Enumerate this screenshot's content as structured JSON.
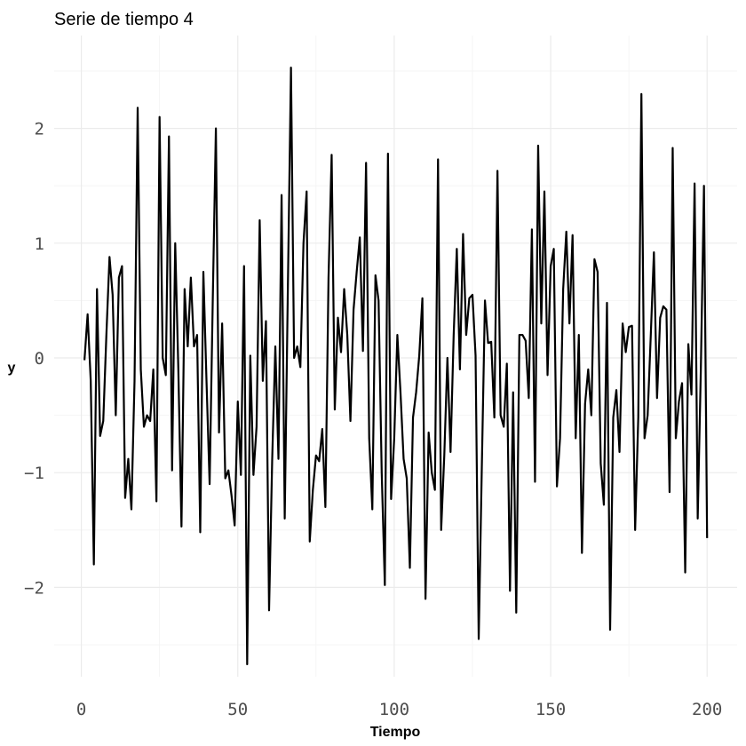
{
  "chart_data": {
    "type": "line",
    "title": "Serie de tiempo 4",
    "xlabel": "Tiempo",
    "ylabel": "y",
    "xlim": [
      0,
      200
    ],
    "ylim": [
      -2.7,
      2.55
    ],
    "x_ticks": [
      0,
      50,
      100,
      150,
      200
    ],
    "x_tick_labels": [
      "0",
      "50",
      "100",
      "150",
      "200"
    ],
    "y_ticks": [
      -2,
      -1,
      0,
      1,
      2
    ],
    "y_tick_labels": [
      "−2",
      "−1",
      "0",
      "1",
      "2"
    ],
    "grid": true,
    "line_color": "#000000",
    "series": [
      {
        "x": [
          1,
          2,
          3,
          4,
          5,
          6,
          7,
          8,
          9,
          10,
          11,
          12,
          13,
          14,
          15,
          16,
          17,
          18,
          19,
          20,
          21,
          22,
          23,
          24,
          25,
          26,
          27,
          28,
          29,
          30,
          31,
          32,
          33,
          34,
          35,
          36,
          37,
          38,
          39,
          40,
          41,
          42,
          43,
          44,
          45,
          46,
          47,
          48,
          49,
          50,
          51,
          52,
          53,
          54,
          55,
          56,
          57,
          58,
          59,
          60,
          61,
          62,
          63,
          64,
          65,
          66,
          67,
          68,
          69,
          70,
          71,
          72,
          73,
          74,
          75,
          76,
          77,
          78,
          79,
          80,
          81,
          82,
          83,
          84,
          85,
          86,
          87,
          88,
          89,
          90,
          91,
          92,
          93,
          94,
          95,
          96,
          97,
          98,
          99,
          100,
          101,
          102,
          103,
          104,
          105,
          106,
          107,
          108,
          109,
          110,
          111,
          112,
          113,
          114,
          115,
          116,
          117,
          118,
          119,
          120,
          121,
          122,
          123,
          124,
          125,
          126,
          127,
          128,
          129,
          130,
          131,
          132,
          133,
          134,
          135,
          136,
          137,
          138,
          139,
          140,
          141,
          142,
          143,
          144,
          145,
          146,
          147,
          148,
          149,
          150,
          151,
          152,
          153,
          154,
          155,
          156,
          157,
          158,
          159,
          160,
          161,
          162,
          163,
          164,
          165,
          166,
          167,
          168,
          169,
          170,
          171,
          172,
          173,
          174,
          175,
          176,
          177,
          178,
          179,
          180,
          181,
          182,
          183,
          184,
          185,
          186,
          187,
          188,
          189,
          190,
          191,
          192,
          193,
          194,
          195,
          196,
          197,
          198,
          199,
          200
        ],
        "values": [
          -0.02,
          0.38,
          -0.2,
          -1.8,
          0.6,
          -0.68,
          -0.55,
          0.2,
          0.88,
          0.55,
          -0.5,
          0.7,
          0.8,
          -1.22,
          -0.88,
          -1.32,
          -0.2,
          2.18,
          -0.1,
          -0.6,
          -0.5,
          -0.55,
          -0.1,
          -1.25,
          2.1,
          0.0,
          -0.15,
          1.93,
          -0.98,
          1.0,
          -0.1,
          -1.47,
          0.6,
          0.1,
          0.7,
          0.1,
          0.2,
          -1.52,
          0.75,
          -0.2,
          -1.1,
          0.5,
          2.0,
          -0.65,
          0.3,
          -1.05,
          -0.98,
          -1.2,
          -1.46,
          -0.38,
          -1.02,
          0.8,
          -2.67,
          0.02,
          -1.02,
          -0.6,
          1.2,
          -0.2,
          0.32,
          -2.2,
          -0.88,
          0.1,
          -0.88,
          1.42,
          -1.4,
          0.6,
          2.53,
          0.0,
          0.1,
          -0.08,
          1.0,
          1.45,
          -1.6,
          -1.15,
          -0.85,
          -0.9,
          -0.62,
          -1.3,
          0.7,
          1.77,
          -0.45,
          0.35,
          0.05,
          0.6,
          0.2,
          -0.55,
          0.42,
          0.75,
          1.05,
          0.06,
          1.7,
          -0.7,
          -1.32,
          0.72,
          0.5,
          -1.0,
          -1.98,
          1.78,
          -1.23,
          -0.7,
          0.2,
          -0.3,
          -0.88,
          -1.05,
          -1.83,
          -0.52,
          -0.3,
          0.02,
          0.52,
          -2.1,
          -0.65,
          -1.0,
          -1.15,
          1.73,
          -1.5,
          -0.85,
          0.0,
          -0.82,
          0.2,
          0.95,
          -0.1,
          1.08,
          0.2,
          0.52,
          0.55,
          0.02,
          -2.45,
          -0.95,
          0.5,
          0.13,
          0.14,
          -0.52,
          1.63,
          -0.5,
          -0.6,
          -0.05,
          -2.03,
          -0.3,
          -2.22,
          0.2,
          0.2,
          0.15,
          -0.35,
          1.12,
          -1.08,
          1.85,
          0.3,
          1.45,
          -0.15,
          0.8,
          0.95,
          -1.12,
          -0.7,
          0.6,
          1.1,
          0.3,
          1.07,
          -0.7,
          0.2,
          -1.7,
          -0.4,
          -0.1,
          -0.5,
          0.86,
          0.75,
          -0.92,
          -1.28,
          0.48,
          -2.37,
          -0.52,
          -0.28,
          -0.82,
          0.3,
          0.05,
          0.27,
          0.28,
          -1.5,
          -0.52,
          2.3,
          -0.7,
          -0.5,
          0.2,
          0.92,
          -0.35,
          0.35,
          0.45,
          0.42,
          -1.17,
          1.83,
          -0.7,
          -0.38,
          -0.22,
          -1.87,
          0.12,
          -0.32,
          1.52,
          -1.4,
          -0.1,
          1.5,
          -1.57
        ]
      }
    ]
  }
}
